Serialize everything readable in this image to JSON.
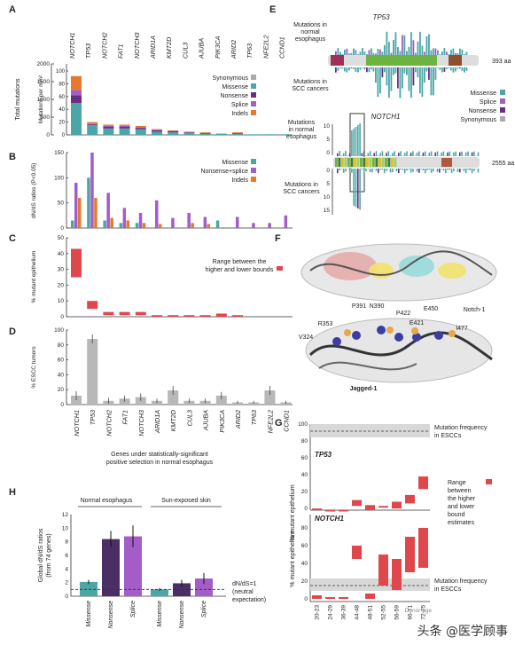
{
  "panels": {
    "A": "A",
    "B": "B",
    "C": "C",
    "D": "D",
    "E": "E",
    "F": "F",
    "G": "G",
    "H": "H"
  },
  "genes": [
    "NOTCH1",
    "TP53",
    "NOTCH2",
    "FAT1",
    "NOTCH3",
    "ARID1A",
    "KMT2D",
    "CUL3",
    "AJUBA",
    "PIK3CA",
    "ARID2",
    "TP63",
    "NFE2L2",
    "CCND1"
  ],
  "colors": {
    "missense": "#4aa7a6",
    "nonsense": "#6b2c86",
    "splice": "#a35cc8",
    "indels": "#e57a2e",
    "synonymous": "#aaaaaa",
    "range": "#e0474c",
    "gray_bar": "#b8b8b8"
  },
  "panelA": {
    "ylabel_left": "Total mutations",
    "ylabel_right": "Mutations per mm²",
    "left_ticks": [
      "2000",
      "1500",
      "1000",
      "500",
      "0"
    ],
    "right_ticks": [
      "100",
      "80",
      "60",
      "40",
      "20",
      "0"
    ],
    "legend": [
      "Synonymous",
      "Missense",
      "Nonsense",
      "Splice",
      "Indels"
    ]
  },
  "chart_data": [
    {
      "type": "bar",
      "title": "",
      "ylabel": "Mutations per mm²",
      "ylim": [
        0,
        100
      ],
      "categories": [
        "NOTCH1",
        "TP53",
        "NOTCH2",
        "FAT1",
        "NOTCH3",
        "ARID1A",
        "KMT2D",
        "CUL3",
        "AJUBA",
        "PIK3CA",
        "ARID2",
        "TP63",
        "NFE2L2",
        "CCND1"
      ],
      "series": [
        {
          "name": "Missense",
          "values": [
            50,
            15,
            10,
            10,
            9,
            5,
            4,
            3,
            2,
            2,
            2,
            1,
            1,
            1
          ]
        },
        {
          "name": "Nonsense",
          "values": [
            12,
            1,
            3,
            3,
            2,
            2,
            2,
            1,
            1,
            0,
            1,
            0,
            0,
            0
          ]
        },
        {
          "name": "Splice",
          "values": [
            8,
            1,
            1,
            1,
            1,
            1,
            0,
            0,
            0,
            0,
            0,
            0,
            0,
            0
          ]
        },
        {
          "name": "Indels",
          "values": [
            22,
            3,
            2,
            2,
            2,
            1,
            1,
            1,
            1,
            0,
            1,
            0,
            0,
            0
          ]
        }
      ]
    },
    {
      "type": "bar",
      "ylabel": "dN/dS ratios (P<0.05)",
      "ylim": [
        0,
        150
      ],
      "categories": [
        "NOTCH1",
        "TP53",
        "NOTCH2",
        "FAT1",
        "NOTCH3",
        "ARID1A",
        "KMT2D",
        "CUL3",
        "AJUBA",
        "PIK3CA",
        "ARID2",
        "TP63",
        "NFE2L2",
        "CCND1"
      ],
      "series": [
        {
          "name": "Missense",
          "values": [
            15,
            100,
            15,
            10,
            10,
            0,
            0,
            0,
            0,
            15,
            0,
            0,
            0,
            0
          ]
        },
        {
          "name": "Nonsense+splice",
          "values": [
            90,
            150,
            70,
            40,
            30,
            55,
            20,
            30,
            22,
            0,
            22,
            10,
            10,
            25
          ]
        },
        {
          "name": "Indels",
          "values": [
            60,
            60,
            20,
            15,
            10,
            8,
            0,
            10,
            8,
            0,
            0,
            0,
            0,
            0
          ]
        }
      ]
    },
    {
      "type": "bar",
      "ylabel": "% mutant epithelium",
      "ylim": [
        0,
        50
      ],
      "categories": [
        "NOTCH1",
        "TP53",
        "NOTCH2",
        "FAT1",
        "NOTCH3",
        "ARID1A",
        "KMT2D",
        "CUL3",
        "AJUBA",
        "PIK3CA",
        "ARID2",
        "TP63",
        "NFE2L2",
        "CCND1"
      ],
      "series": [
        {
          "name": "Range between the higher and lower bounds",
          "low": [
            25,
            5,
            1,
            1,
            1,
            0,
            0,
            0,
            0,
            0,
            0,
            0,
            0,
            0
          ],
          "high": [
            43,
            10,
            3,
            3,
            3,
            1,
            1,
            1,
            1,
            2,
            1,
            0,
            0,
            0
          ]
        }
      ]
    },
    {
      "type": "bar",
      "ylabel": "% ESCC tumors",
      "ylim": [
        0,
        100
      ],
      "categories": [
        "NOTCH1",
        "TP53",
        "NOTCH2",
        "FAT1",
        "NOTCH3",
        "ARID1A",
        "KMT2D",
        "CUL3",
        "AJUBA",
        "PIK3CA",
        "ARID2",
        "TP63",
        "NFE2L2",
        "CCND1"
      ],
      "values": [
        12,
        88,
        5,
        8,
        10,
        5,
        19,
        5,
        5,
        12,
        3,
        3,
        19,
        3
      ],
      "errors": [
        6,
        6,
        4,
        4,
        5,
        3,
        6,
        3,
        3,
        5,
        2,
        2,
        6,
        2
      ]
    },
    {
      "type": "bar",
      "ylabel": "% mutant epithelium",
      "ylim": [
        0,
        50
      ],
      "categories": [
        "20-23",
        "24-29",
        "36-39",
        "44-48",
        "48-51",
        "52-55",
        "56-59",
        "66-71",
        "72-75"
      ],
      "series": [
        {
          "name": "TP53",
          "low": [
            0,
            0,
            0,
            5,
            0,
            3,
            2,
            8,
            25
          ],
          "high": [
            2,
            0,
            0,
            12,
            6,
            5,
            10,
            18,
            40
          ]
        },
        {
          "name": "NOTCH1",
          "low": [
            0,
            0,
            0,
            45,
            0,
            15,
            10,
            30,
            35
          ],
          "high": [
            4,
            2,
            2,
            60,
            6,
            50,
            45,
            70,
            80
          ]
        }
      ]
    },
    {
      "type": "bar",
      "ylabel": "Global dN/dS ratios (from 74 genes)",
      "ylim": [
        0,
        12
      ],
      "categories": [
        "Missense",
        "Nonsense",
        "Splice",
        "Missense",
        "Nonsense",
        "Splice"
      ],
      "series": [
        {
          "name": "Global dN/dS",
          "values": [
            2.1,
            8.4,
            8.8,
            1.0,
            1.9,
            2.6
          ],
          "errors": [
            0.3,
            1.2,
            1.6,
            0.2,
            0.5,
            0.8
          ]
        }
      ]
    }
  ],
  "panelB": {
    "ylabel": "dN/dS ratios (P<0.05)",
    "ticks": [
      "150",
      "100",
      "50",
      "0"
    ],
    "legend": [
      "Missense",
      "Nonsense+splice",
      "Indels"
    ]
  },
  "panelC": {
    "ylabel": "% mutant epithelium",
    "ticks": [
      "50",
      "40",
      "30",
      "20",
      "10",
      "0"
    ],
    "legend": "Range between the higher and lower bounds",
    "legend_l1": "Range between the",
    "legend_l2": "higher and lower bounds"
  },
  "panelD": {
    "ylabel": "% ESCC tumors",
    "ticks": [
      "100",
      "80",
      "60",
      "40",
      "20",
      "0"
    ],
    "caption1": "Genes under statistically-significant",
    "caption2": "positive selection in normal esophagus"
  },
  "panelE": {
    "tp53": "TP53",
    "notch1": "NOTCH1",
    "top_label": [
      "Mutations in",
      "normal",
      "esophagus"
    ],
    "bot_label": [
      "Mutations in",
      "SCC cancers"
    ],
    "aa1": "393 aa",
    "aa2": "2555 aa",
    "legend": [
      "Missense",
      "Splice",
      "Nonsense",
      "Synonymous"
    ],
    "n1_label": [
      "Mutations",
      "in normal",
      "esophagus"
    ],
    "n1_ticks": [
      "10",
      "5",
      "0"
    ],
    "n1_bticks": [
      "0",
      "5",
      "10",
      "15"
    ]
  },
  "panelF": {
    "notch": "Notch-1",
    "jagged": "Jagged-1",
    "residues": [
      "P391",
      "N390",
      "P422",
      "E450",
      "R353",
      "E421",
      "V324",
      "I477"
    ]
  },
  "panelG": {
    "top_line": [
      "Mutation frequency",
      "in ESCCs"
    ],
    "tp53": "TP53",
    "notch1": "NOTCH1",
    "ylabel": "% mutant epithelium",
    "legend": [
      "Range",
      "between",
      "the higher",
      "and lower",
      "bound",
      "estimates"
    ],
    "ticks_top": [
      "100",
      "80",
      "60",
      "40",
      "20",
      "0"
    ],
    "ticks_bot": [
      "80",
      "60",
      "40",
      "20",
      "0"
    ],
    "ages": [
      "20-23",
      "24-29",
      "36-39",
      "44-48",
      "48-51",
      "52-55",
      "56-59",
      "66-71",
      "72-75"
    ],
    "xlabel": "Donor age"
  },
  "panelH": {
    "groups": [
      "Normal esophagus",
      "Sun-exposed skin"
    ],
    "ylabel": [
      "Global dN/dS ratios",
      "(from 74 genes)"
    ],
    "ticks": [
      "12",
      "10",
      "8",
      "6",
      "4",
      "2",
      "0"
    ],
    "note": [
      "dN/dS=1",
      "(neutral",
      "expectation)"
    ],
    "xlabels": [
      "Missense",
      "Nonsense",
      "Splice",
      "Missense",
      "Nonsense",
      "Splice"
    ]
  },
  "watermark": "头条 @医学顾事"
}
